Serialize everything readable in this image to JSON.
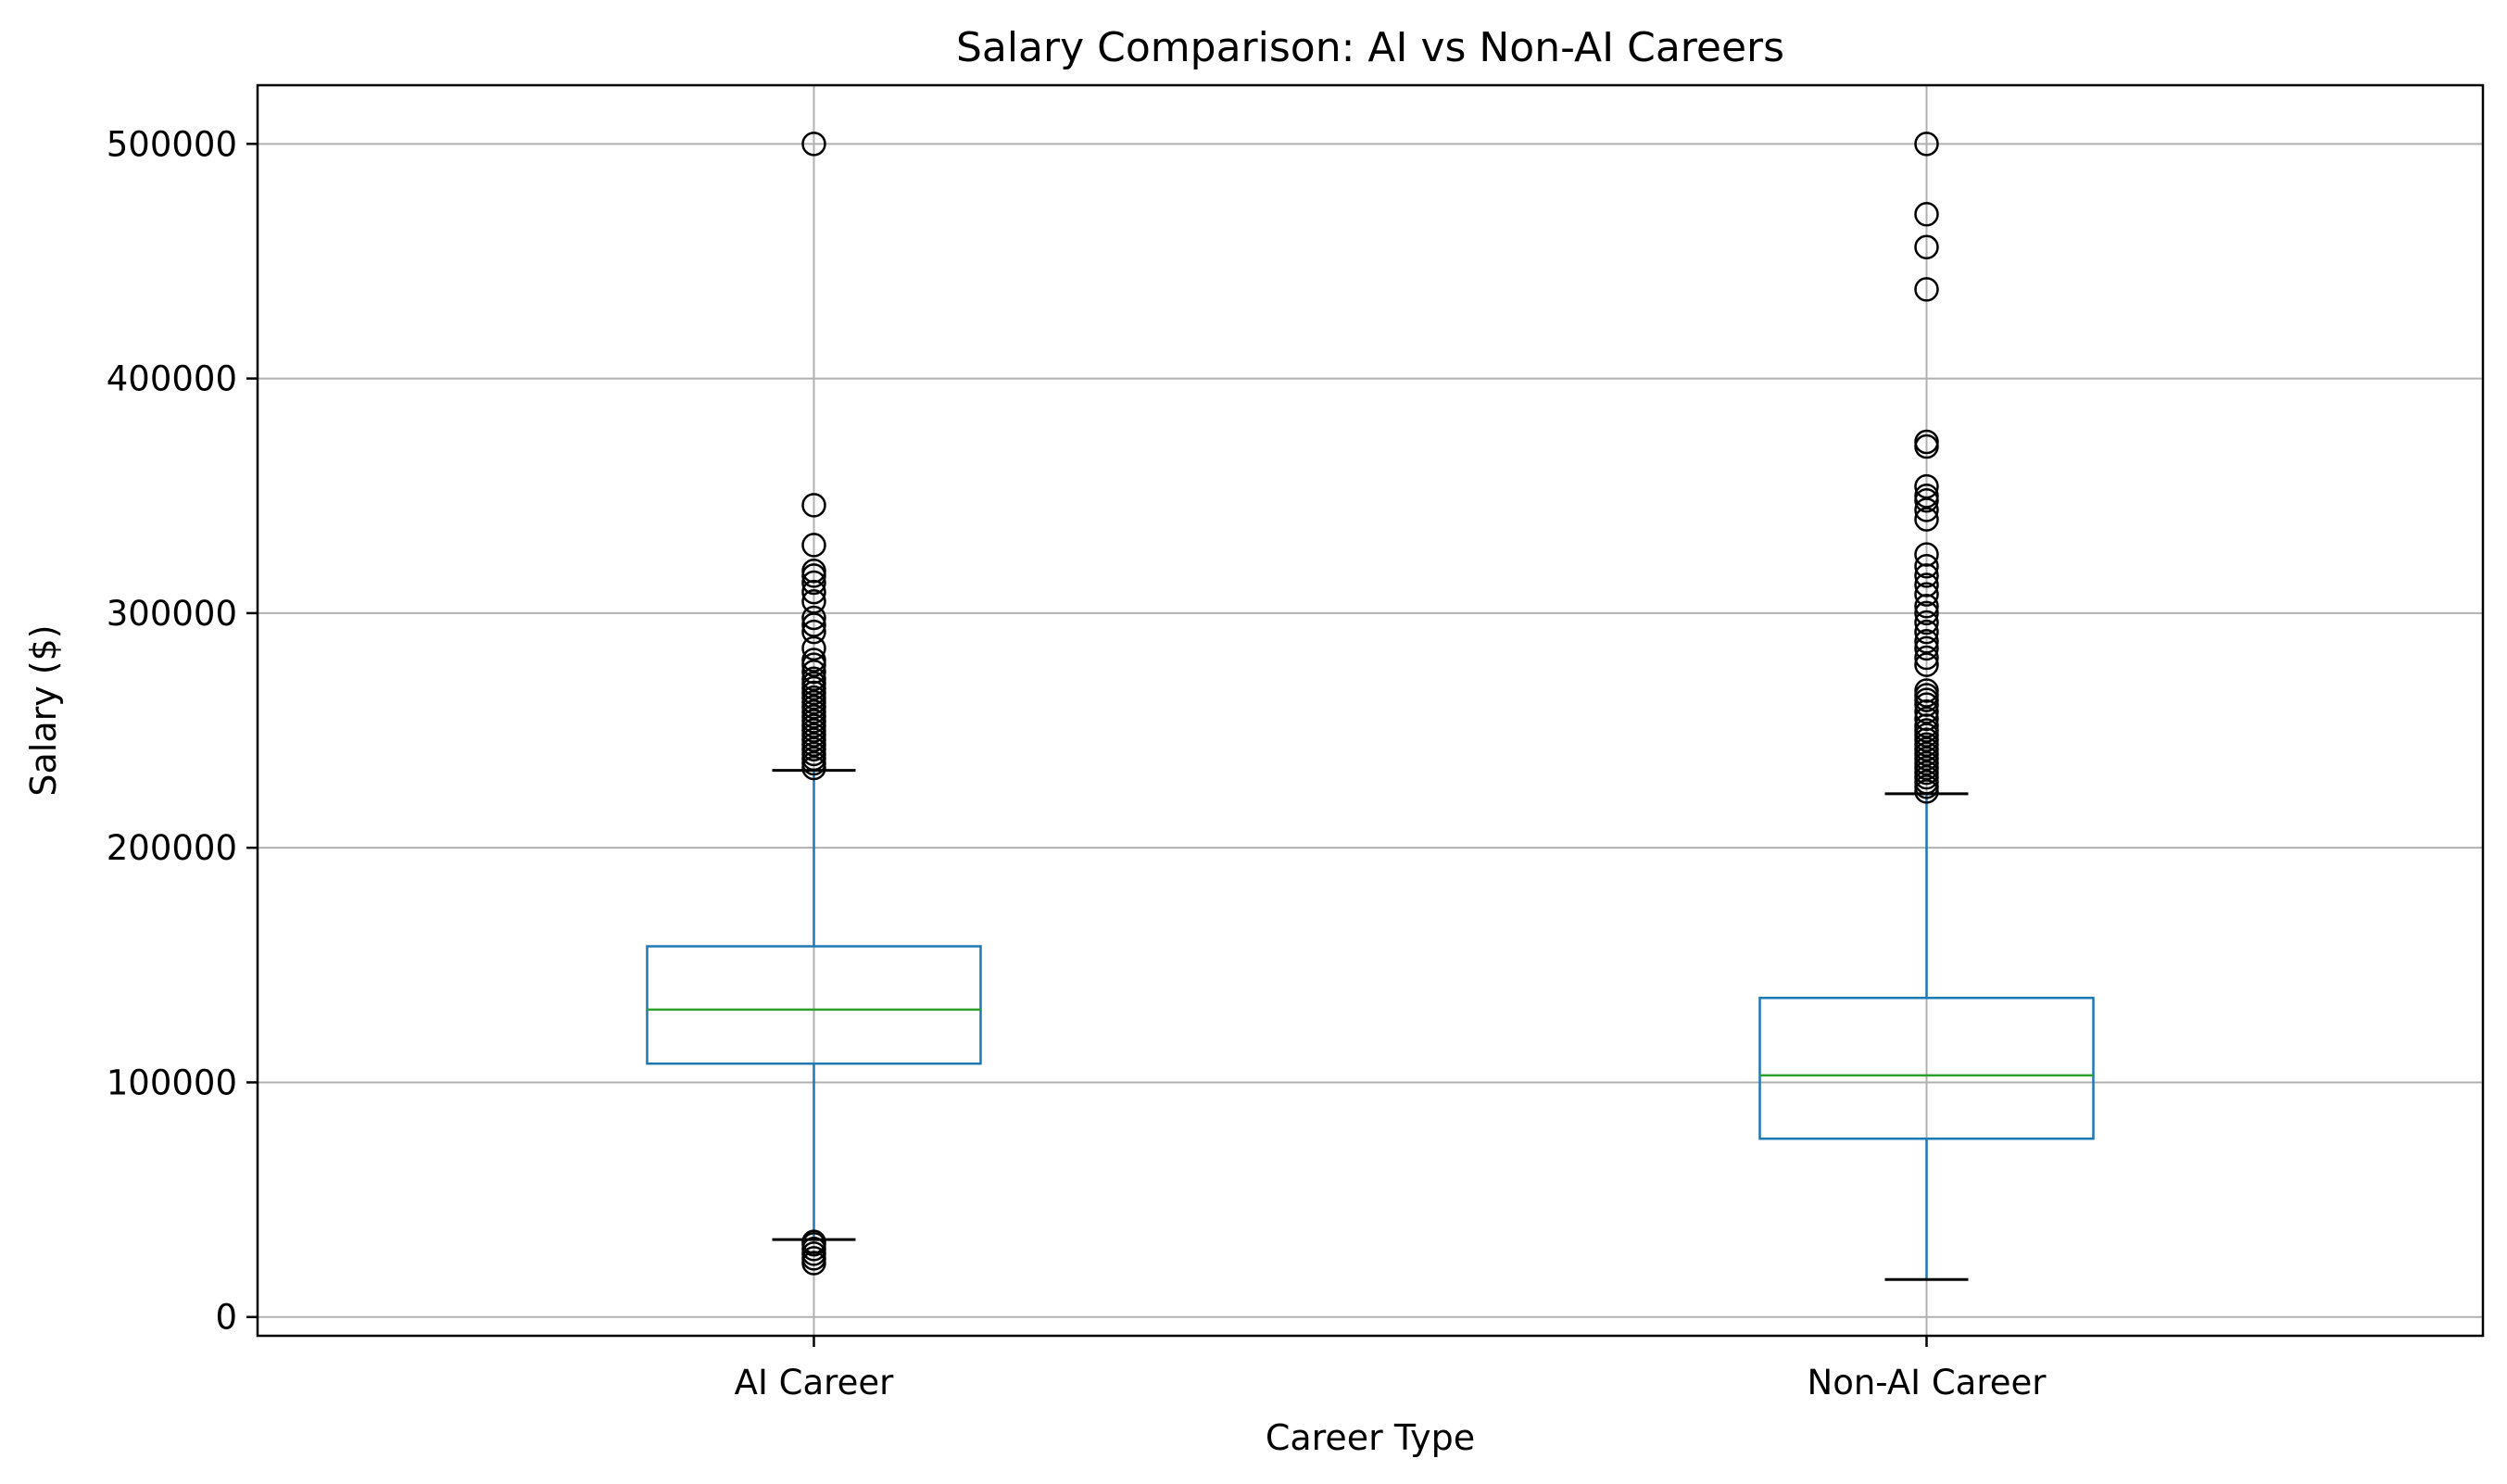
{
  "chart_data": {
    "type": "box",
    "title": "Salary Comparison: AI vs Non-AI Careers",
    "xlabel": "Career Type",
    "ylabel": "Salary ($)",
    "ylim": [
      -8000,
      525000
    ],
    "yticks": [
      0,
      100000,
      200000,
      300000,
      400000,
      500000
    ],
    "ytick_labels": [
      "0",
      "100000",
      "200000",
      "300000",
      "400000",
      "500000"
    ],
    "grid": true,
    "colors": {
      "box": "#1f77b4",
      "median": "#2ca02c",
      "whisker": "#1f77b4",
      "cap": "#000000",
      "flier": "#000000",
      "grid": "#b0b0b0"
    },
    "categories": [
      "AI Career",
      "Non-AI Career"
    ],
    "series": [
      {
        "category": "AI Career",
        "whisker_low": 33000,
        "q1": 108000,
        "median": 131000,
        "q3": 158000,
        "whisker_high": 233000,
        "outliers": [
          23000,
          25000,
          27000,
          29000,
          31000,
          32000,
          234000,
          236000,
          238000,
          240000,
          242000,
          244000,
          246000,
          248000,
          250000,
          252000,
          254000,
          256000,
          258000,
          260000,
          262000,
          264000,
          266000,
          268000,
          270000,
          272000,
          275000,
          278000,
          280000,
          285000,
          292000,
          295000,
          298000,
          305000,
          309000,
          313000,
          316000,
          318000,
          329000,
          346000,
          500000
        ]
      },
      {
        "category": "Non-AI Career",
        "whisker_low": 16000,
        "q1": 76000,
        "median": 103000,
        "q3": 136000,
        "whisker_high": 223000,
        "outliers": [
          224000,
          226000,
          228000,
          230000,
          232000,
          234000,
          236000,
          238000,
          240000,
          242000,
          244000,
          246000,
          248000,
          250000,
          252000,
          255000,
          258000,
          261000,
          263000,
          265000,
          267000,
          278000,
          281000,
          285000,
          288000,
          292000,
          296000,
          300000,
          303000,
          308000,
          312000,
          316000,
          320000,
          325000,
          340000,
          344000,
          348000,
          350000,
          354000,
          371000,
          373000,
          438000,
          456000,
          470000,
          500000
        ]
      }
    ]
  }
}
